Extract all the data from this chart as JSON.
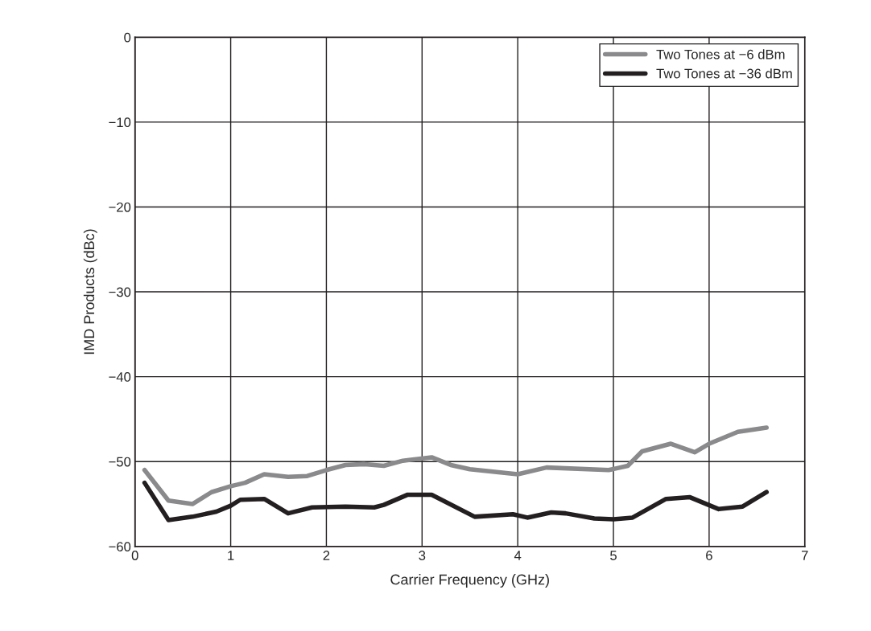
{
  "chart_data": {
    "type": "line",
    "xlabel": "Carrier Frequency (GHz)",
    "ylabel": "IMD Products (dBc)",
    "xlim": [
      0,
      7
    ],
    "xticks": [
      0,
      1,
      2,
      3,
      4,
      5,
      6,
      7
    ],
    "ylim": [
      -60,
      0
    ],
    "yticks": [
      -60,
      -50,
      -40,
      -30,
      -20,
      -10,
      0
    ],
    "grid": true,
    "legend": "top right",
    "marker": "none",
    "line_style": "solid",
    "series": [
      {
        "name": "Two Tones at −6 dBm",
        "color": "#8a8a8c",
        "x": [
          0.1,
          0.35,
          0.6,
          0.8,
          1.0,
          1.15,
          1.35,
          1.6,
          1.8,
          2.0,
          2.2,
          2.4,
          2.6,
          2.8,
          3.1,
          3.3,
          3.5,
          4.0,
          4.3,
          4.95,
          5.15,
          5.3,
          5.6,
          5.85,
          6.0,
          6.3,
          6.6
        ],
        "values": [
          -51,
          -54.6,
          -55,
          -53.6,
          -52.9,
          -52.5,
          -51.5,
          -51.8,
          -51.7,
          -51,
          -50.4,
          -50.3,
          -50.5,
          -49.9,
          -49.5,
          -50.4,
          -50.9,
          -51.5,
          -50.7,
          -51,
          -50.5,
          -48.8,
          -47.9,
          -48.9,
          -47.9,
          -46.5,
          -46
        ]
      },
      {
        "name": "Two Tones at −36 dBm",
        "color": "#231f20",
        "x": [
          0.1,
          0.35,
          0.6,
          0.85,
          1.0,
          1.1,
          1.35,
          1.6,
          1.85,
          2.2,
          2.5,
          2.6,
          2.85,
          3.1,
          3.55,
          3.95,
          4.1,
          4.35,
          4.5,
          4.8,
          5.0,
          5.2,
          5.55,
          5.8,
          6.1,
          6.35,
          6.6
        ],
        "values": [
          -52.5,
          -56.9,
          -56.5,
          -55.9,
          -55.2,
          -54.5,
          -54.4,
          -56.1,
          -55.4,
          -55.3,
          -55.4,
          -55.1,
          -53.9,
          -53.9,
          -56.5,
          -56.2,
          -56.6,
          -56,
          -56.1,
          -56.7,
          -56.8,
          -56.6,
          -54.4,
          -54.2,
          -55.6,
          -55.3,
          -53.6
        ]
      }
    ]
  }
}
